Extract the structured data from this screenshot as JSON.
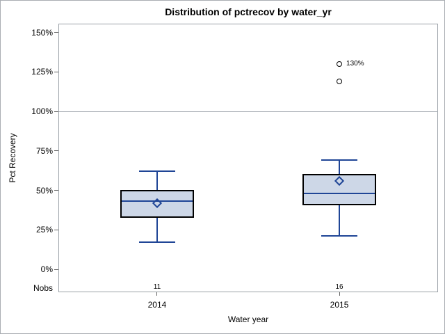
{
  "title": "Distribution of pctrecov by water_yr",
  "axes": {
    "y_label": "Pct Recovery",
    "x_label": "Water year",
    "nobs_row_label": "Nobs"
  },
  "colors": {
    "box_fill": "#cdd7e7",
    "box_stroke": "#000000",
    "line_blue": "#1f4596",
    "frame_gray": "#9aa0a6",
    "reference_line_gray": "#a7adb3",
    "tick_gray": "#616161",
    "text": "#000000",
    "background": "#ffffff"
  },
  "chart_data": {
    "type": "boxplot",
    "title": "Distribution of pctrecov by water_yr",
    "xlabel": "Water year",
    "ylabel": "Pct Recovery",
    "ylim": [
      0,
      150
    ],
    "grid": false,
    "reference_line_y": 100,
    "yticks": [
      {
        "value": 0,
        "label": "0%"
      },
      {
        "value": 25,
        "label": "25%"
      },
      {
        "value": 50,
        "label": "50%"
      },
      {
        "value": 75,
        "label": "75%"
      },
      {
        "value": 100,
        "label": "100%"
      },
      {
        "value": 125,
        "label": "125%"
      },
      {
        "value": 150,
        "label": "150%"
      }
    ],
    "categories": [
      "2014",
      "2015"
    ],
    "nobs_label": "Nobs",
    "groups": [
      {
        "category": "2014",
        "nobs": 11,
        "whisker_low": 17,
        "q1": 33,
        "median": 43,
        "mean": 42,
        "q3": 50,
        "whisker_high": 62,
        "outliers": []
      },
      {
        "category": "2015",
        "nobs": 16,
        "whisker_low": 21,
        "q1": 41,
        "median": 48,
        "mean": 56,
        "q3": 60,
        "whisker_high": 69,
        "outliers": [
          {
            "value": 119,
            "label": ""
          },
          {
            "value": 130,
            "label": "130%"
          }
        ]
      }
    ]
  }
}
